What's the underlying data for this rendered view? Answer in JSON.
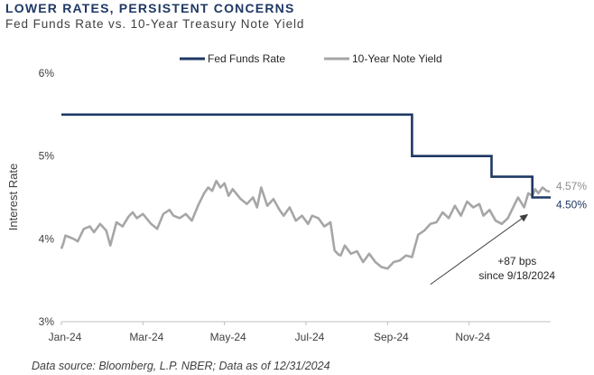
{
  "header": {
    "title": "LOWER RATES, PERSISTENT CONCERNS",
    "subtitle": "Fed Funds Rate vs. 10-Year Treasury Note Yield"
  },
  "footer": {
    "source": "Data source: Bloomberg, L.P. NBER; Data as of 12/31/2024"
  },
  "colors": {
    "fed_funds": "#1f3864",
    "ten_year": "#a6a6a6",
    "arrow": "#404040"
  },
  "chart_data": {
    "type": "line",
    "title": "LOWER RATES, PERSISTENT CONCERNS",
    "subtitle": "Fed Funds Rate vs. 10-Year Treasury Note Yield",
    "xlabel": "",
    "ylabel": "Interest Rate",
    "ylim": [
      3,
      6
    ],
    "xlim": [
      0,
      12
    ],
    "yticks": [
      3,
      4,
      5,
      6
    ],
    "ytick_labels": [
      "3%",
      "4%",
      "5%",
      "6%"
    ],
    "xticks": [
      0,
      2,
      4,
      6,
      8,
      10
    ],
    "xtick_labels": [
      "Jan-24",
      "Mar-24",
      "May-24",
      "Jul-24",
      "Sep-24",
      "Nov-24"
    ],
    "grid": false,
    "legend_position": "top-center",
    "series": [
      {
        "name": "Fed Funds Rate",
        "style": "step",
        "x": [
          0,
          8.6,
          8.6,
          10.55,
          10.55,
          11.55,
          11.55,
          12
        ],
        "values": [
          5.5,
          5.5,
          5.0,
          5.0,
          4.75,
          4.75,
          4.5,
          4.5
        ]
      },
      {
        "name": "10-Year Note Yield",
        "style": "line",
        "x": [
          0.0,
          0.05,
          0.1,
          0.2,
          0.3,
          0.4,
          0.55,
          0.7,
          0.8,
          0.95,
          1.1,
          1.2,
          1.35,
          1.5,
          1.65,
          1.75,
          1.85,
          2.0,
          2.2,
          2.35,
          2.5,
          2.65,
          2.75,
          2.9,
          3.05,
          3.2,
          3.35,
          3.5,
          3.6,
          3.7,
          3.8,
          3.9,
          4.0,
          4.1,
          4.2,
          4.4,
          4.55,
          4.7,
          4.8,
          4.9,
          5.05,
          5.2,
          5.35,
          5.45,
          5.6,
          5.75,
          5.9,
          6.05,
          6.15,
          6.3,
          6.45,
          6.6,
          6.7,
          6.8,
          6.85,
          6.95,
          7.1,
          7.25,
          7.4,
          7.55,
          7.7,
          7.85,
          8.0,
          8.15,
          8.3,
          8.45,
          8.6,
          8.75,
          8.9,
          9.05,
          9.2,
          9.35,
          9.5,
          9.65,
          9.8,
          9.95,
          10.1,
          10.25,
          10.35,
          10.5,
          10.65,
          10.8,
          10.95,
          11.1,
          11.2,
          11.35,
          11.45,
          11.55,
          11.62,
          11.7,
          11.8,
          11.9,
          11.98
        ],
        "values": [
          3.88,
          3.95,
          4.04,
          4.02,
          4.0,
          3.97,
          4.12,
          4.15,
          4.08,
          4.18,
          4.1,
          3.92,
          4.2,
          4.15,
          4.27,
          4.32,
          4.25,
          4.3,
          4.18,
          4.12,
          4.3,
          4.35,
          4.28,
          4.25,
          4.3,
          4.22,
          4.4,
          4.55,
          4.62,
          4.58,
          4.7,
          4.62,
          4.67,
          4.52,
          4.6,
          4.48,
          4.42,
          4.5,
          4.38,
          4.62,
          4.4,
          4.48,
          4.35,
          4.28,
          4.38,
          4.22,
          4.28,
          4.18,
          4.28,
          4.25,
          4.15,
          4.2,
          3.86,
          3.81,
          3.8,
          3.92,
          3.82,
          3.85,
          3.72,
          3.82,
          3.72,
          3.66,
          3.64,
          3.72,
          3.74,
          3.8,
          3.78,
          4.05,
          4.1,
          4.18,
          4.2,
          4.32,
          4.25,
          4.4,
          4.28,
          4.45,
          4.38,
          4.42,
          4.28,
          4.35,
          4.22,
          4.18,
          4.25,
          4.4,
          4.5,
          4.38,
          4.55,
          4.52,
          4.6,
          4.55,
          4.62,
          4.58,
          4.57
        ]
      }
    ],
    "annotations": [
      {
        "text": "4.57%",
        "series": "10-Year Note Yield",
        "x": 12,
        "y": 4.57
      },
      {
        "text": "4.50%",
        "series": "Fed Funds Rate",
        "x": 12,
        "y": 4.5
      },
      {
        "text": "+87 bps",
        "x": 10.4,
        "y": 3.74
      },
      {
        "text": "since 9/18/2024",
        "x": 10.4,
        "y": 3.57
      }
    ],
    "arrow": {
      "from": {
        "x": 9.05,
        "y": 3.45
      },
      "to": {
        "x": 11.45,
        "y": 4.3
      }
    }
  }
}
